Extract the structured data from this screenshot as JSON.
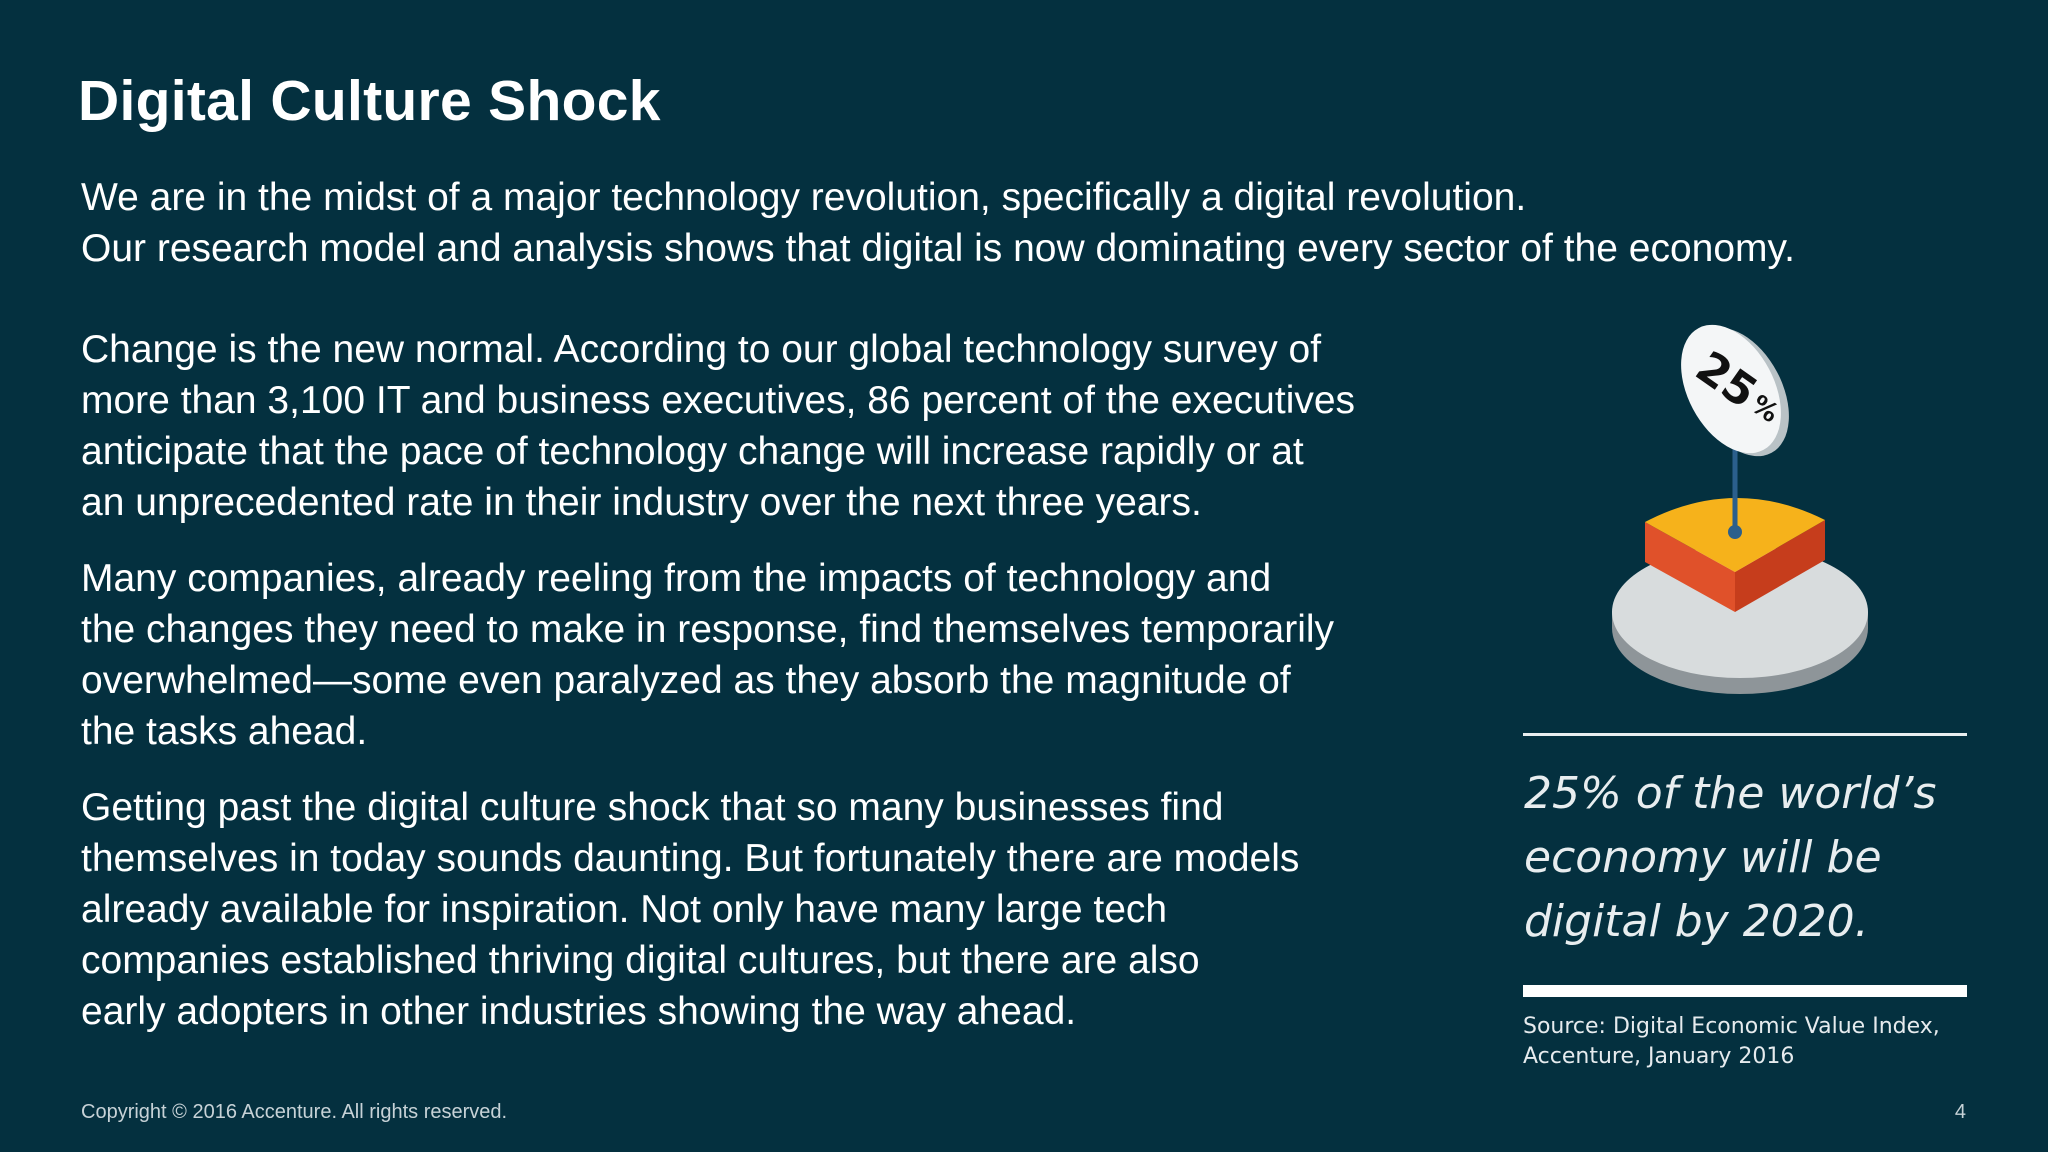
{
  "title": "Digital Culture Shock",
  "intro": [
    "We are in the midst of a major technology revolution, specifically a digital revolution.",
    "Our research model and analysis shows that digital is now dominating every sector of the economy."
  ],
  "paragraphs": [
    [
      "Change is the new normal. According to our global technology survey of",
      "more than 3,100 IT and business executives, 86 percent of the executives",
      "anticipate that the pace of technology change will increase rapidly or at",
      "an unprecedented rate in their industry over the next three years."
    ],
    [
      "Many companies, already reeling from the impacts of technology and",
      "the changes they need to make in response, find themselves temporarily",
      "overwhelmed—some even paralyzed as they absorb the magnitude of",
      "the tasks ahead."
    ],
    [
      "Getting past the digital culture shock that so many businesses find",
      "themselves in today sounds daunting. But fortunately there are models",
      "already available for inspiration. Not only have many large tech",
      "companies established thriving digital cultures, but there are also",
      "early adopters in other industries showing the way ahead."
    ]
  ],
  "graphic": {
    "flag_value": "25",
    "flag_unit": "%",
    "share_fraction": 0.25,
    "colors": {
      "slice_top": "#f6b21b",
      "slice_side": "#e0512a",
      "pie_top": "#d8dcdd",
      "pie_side": "#8e9599",
      "flag": "#f4f6f7",
      "pole": "#2b5f8c"
    }
  },
  "callout": {
    "quote_lines": [
      "25% of the world’s",
      "economy will be",
      "digital by 2020."
    ],
    "source_lines": [
      "Source: Digital Economic Value Index,",
      "Accenture, January 2016"
    ]
  },
  "footer": {
    "copyright": "Copyright © 2016 Accenture. All rights reserved.",
    "page_number": "4"
  },
  "colors": {
    "background": "#04303f",
    "text": "#ffffff"
  }
}
